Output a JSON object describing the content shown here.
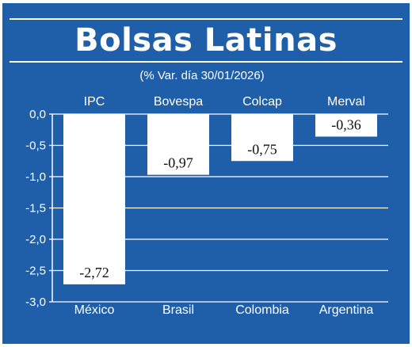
{
  "title": "Bolsas Latinas",
  "subtitle": "(% Var. día 30/01/2026)",
  "colors": {
    "background": "#1f5ea8",
    "bar": "#ffffff",
    "text": "#ffffff",
    "value_label": "#111111"
  },
  "chart_data": {
    "type": "bar",
    "title": "Bolsas Latinas",
    "subtitle": "(% Var. día 30/01/2026)",
    "index_names": [
      "IPC",
      "Bovespa",
      "Colcap",
      "Merval"
    ],
    "categories": [
      "México",
      "Brasil",
      "Colombia",
      "Argentina"
    ],
    "values": [
      -2.72,
      -0.97,
      -0.75,
      -0.36
    ],
    "value_labels": [
      "-2,72",
      "-0,97",
      "-0,75",
      "-0,36"
    ],
    "ylim": [
      -3.0,
      0.0
    ],
    "yticks": [
      0.0,
      -0.5,
      -1.0,
      -1.5,
      -2.0,
      -2.5,
      -3.0
    ],
    "ytick_labels": [
      "0,0",
      "-0,5",
      "-1,0",
      "-1,5",
      "-2,0",
      "-2,5",
      "-3,0"
    ],
    "grid": true,
    "xlabel": "",
    "ylabel": ""
  }
}
